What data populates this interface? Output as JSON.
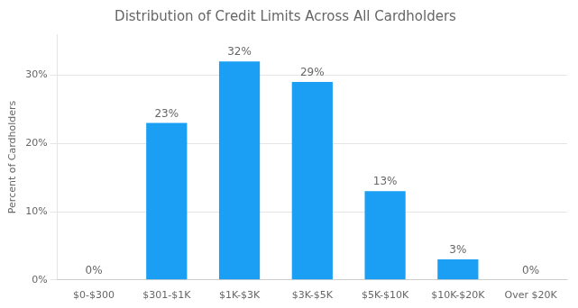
{
  "chart_data": {
    "type": "bar",
    "title": "Distribution of Credit Limits Across All Cardholders",
    "ylabel": "Percent of Cardholders",
    "categories": [
      "$0-$300",
      "$301-$1K",
      "$1K-$3K",
      "$3K-$5K",
      "$5K-$10K",
      "$10K-$20K",
      "Over $20K"
    ],
    "values": [
      0,
      23,
      32,
      29,
      13,
      3,
      0
    ],
    "value_labels": [
      "0%",
      "23%",
      "32%",
      "29%",
      "13%",
      "3%",
      "0%"
    ],
    "data_labels": true,
    "color": "#1a9ff5",
    "ylim": [
      0,
      36
    ],
    "yticks": [
      {
        "value": 0,
        "label": "0%"
      },
      {
        "value": 10,
        "label": "10%"
      },
      {
        "value": 20,
        "label": "20%"
      },
      {
        "value": 30,
        "label": "30%"
      }
    ],
    "grid": true
  }
}
